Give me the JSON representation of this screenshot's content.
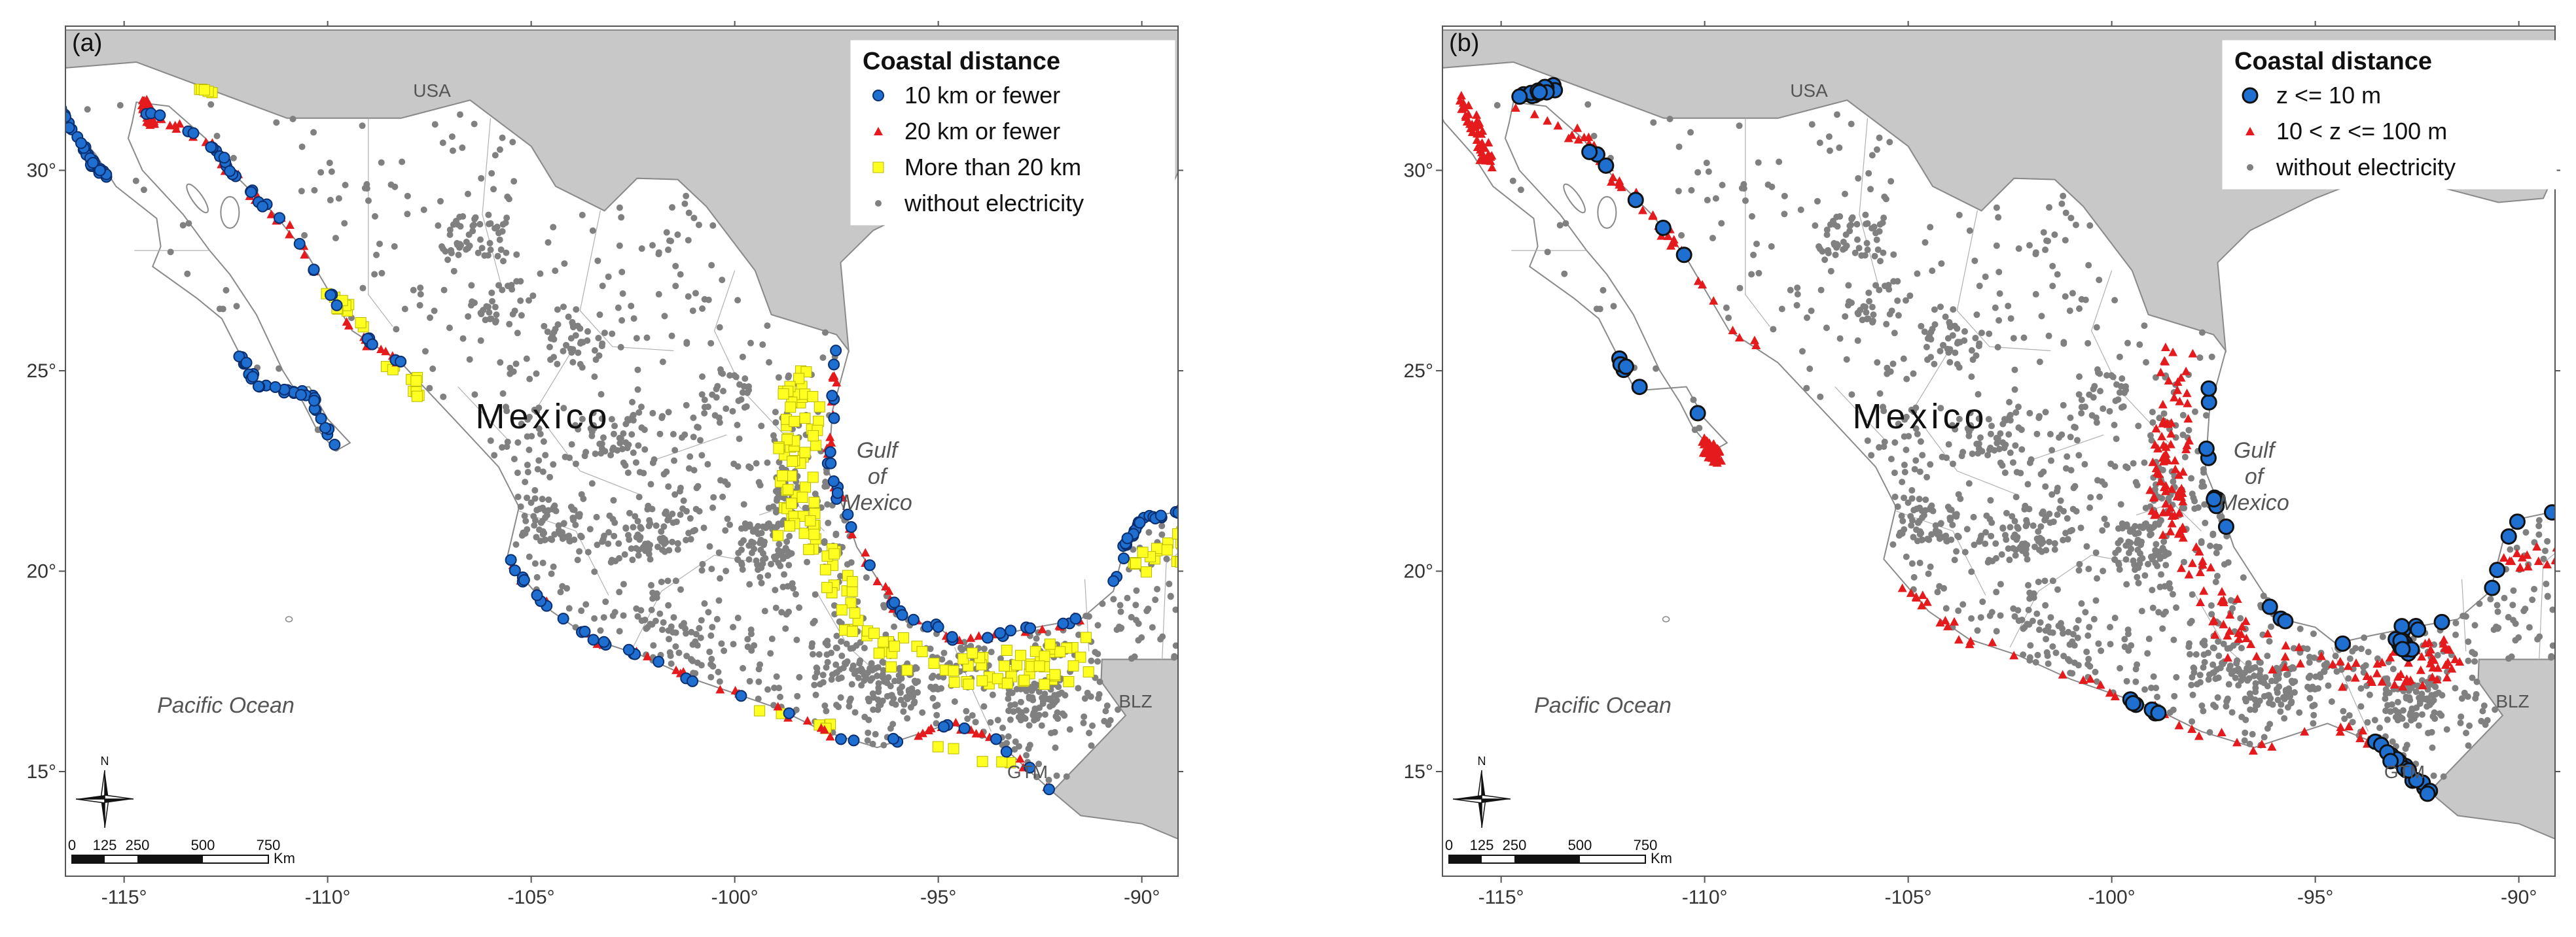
{
  "panels": [
    {
      "label": "(a)",
      "legend": {
        "title": "Coastal distance",
        "items": [
          {
            "label": "10 km or fewer",
            "symbol": "circle",
            "color": "#1f6fd1"
          },
          {
            "label": "20 km or fewer",
            "symbol": "triangle",
            "color": "#e41a1c"
          },
          {
            "label": "More than 20 km",
            "symbol": "square",
            "color": "#ffff22"
          },
          {
            "label": "without electricity",
            "symbol": "dot",
            "color": "#808080"
          }
        ]
      }
    },
    {
      "label": "(b)",
      "legend": {
        "title": "Coastal distance",
        "items": [
          {
            "label": "z <= 10 m",
            "symbol": "circle-large",
            "color": "#1f6fd1"
          },
          {
            "label": "10 < z <= 100 m",
            "symbol": "triangle",
            "color": "#e41a1c"
          },
          {
            "label": "without electricity",
            "symbol": "dot",
            "color": "#808080"
          }
        ]
      }
    }
  ],
  "map_labels": {
    "usa": "USA",
    "mexico": "Mexico",
    "gulf": [
      "Gulf",
      "of",
      "Mexico"
    ],
    "pacific": "Pacific Ocean",
    "blz": "BLZ",
    "gtm": "GTM",
    "north": "N"
  },
  "axes": {
    "lon_ticks": [
      "-115°",
      "-110°",
      "-105°",
      "-100°",
      "-95°",
      "-90°"
    ],
    "lat_ticks": [
      "30°",
      "25°",
      "20°",
      "15°"
    ]
  },
  "scale_bar": {
    "ticks": [
      "0",
      "125",
      "250",
      "500",
      "750"
    ],
    "unit": "Km"
  },
  "colors": {
    "land_foreign": "#c8c8c8",
    "coast_line": "#8a8a8a",
    "frame": "#555555"
  }
}
